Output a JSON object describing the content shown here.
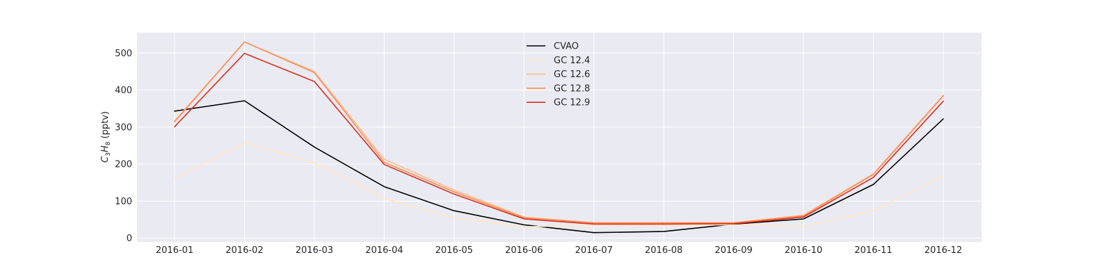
{
  "chart_data": {
    "type": "line",
    "title": "",
    "xlabel": "",
    "ylabel": "C3H8 (pptv)",
    "ylabel_parts": {
      "main": "C",
      "sub1": "3",
      "mid": "H",
      "sub2": "8",
      "unit": " (pptv)"
    },
    "x": [
      "2016-01",
      "2016-02",
      "2016-03",
      "2016-04",
      "2016-05",
      "2016-06",
      "2016-07",
      "2016-08",
      "2016-09",
      "2016-10",
      "2016-11",
      "2016-12"
    ],
    "yticks": [
      0,
      100,
      200,
      300,
      400,
      500
    ],
    "ylim": [
      -10,
      555
    ],
    "grid": true,
    "legend_position": "top-center",
    "series": [
      {
        "name": "CVAO",
        "color": "#000000",
        "values": [
          343,
          371,
          246,
          139,
          74,
          36,
          15,
          18,
          38,
          52,
          145,
          322
        ]
      },
      {
        "name": "GC 12.4",
        "color": "#fee8c8",
        "values": [
          163,
          258,
          203,
          106,
          55,
          31,
          34,
          35,
          36,
          32,
          74,
          168
        ]
      },
      {
        "name": "GC 12.6",
        "color": "#fdbb84",
        "values": [
          317,
          530,
          450,
          213,
          130,
          57,
          42,
          42,
          42,
          62,
          174,
          386
        ]
      },
      {
        "name": "GC 12.8",
        "color": "#fc8d59",
        "values": [
          314,
          530,
          447,
          205,
          125,
          55,
          41,
          41,
          41,
          60,
          172,
          384
        ]
      },
      {
        "name": "GC 12.9",
        "color": "#d7301f",
        "values": [
          301,
          499,
          423,
          199,
          119,
          52,
          38,
          38,
          39,
          57,
          164,
          370
        ]
      }
    ]
  }
}
